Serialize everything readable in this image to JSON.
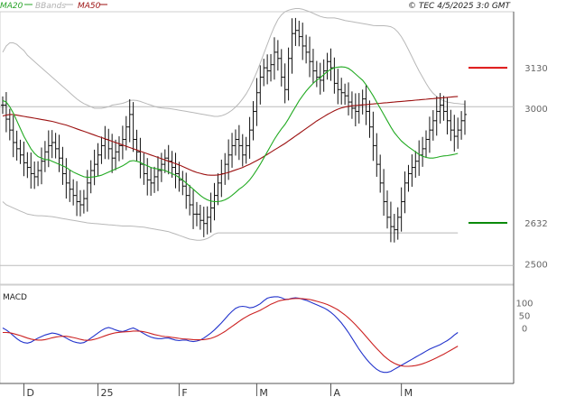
{
  "header": {
    "legend": [
      {
        "label": "MA20",
        "color": "#27a327"
      },
      {
        "label": "BBands",
        "color": "#b0b0b0"
      },
      {
        "label": "MA50",
        "color": "#9c1111"
      }
    ],
    "source_text": "© TEC 4/5/2025 3:0 GMT"
  },
  "chart_data": [
    {
      "type": "ohlc",
      "ylim": [
        2435,
        3310
      ],
      "y_ticks": [
        2500,
        3000
      ],
      "x_tick_labels": [
        "D",
        "25",
        "F",
        "M",
        "A",
        "M"
      ],
      "colors": {
        "bars": "#111111",
        "ma20": "#22aa22",
        "ma50": "#9c1111",
        "bbands": "#b8b8b8"
      },
      "levels": [
        {
          "label": "3130",
          "value": 3130,
          "color": "#dd1111"
        },
        {
          "label": "2632",
          "value": 2632,
          "color": "#0a8a0a"
        }
      ],
      "reference_lines": [
        3005,
        2495
      ],
      "series": [
        {
          "name": "close",
          "values": [
            3010,
            2965,
            2930,
            2890,
            2870,
            2850,
            2825,
            2810,
            2790,
            2780,
            2800,
            2830,
            2860,
            2880,
            2890,
            2870,
            2840,
            2790,
            2760,
            2740,
            2720,
            2700,
            2690,
            2710,
            2760,
            2800,
            2820,
            2850,
            2880,
            2900,
            2870,
            2840,
            2860,
            2880,
            2900,
            2940,
            2980,
            2900,
            2860,
            2820,
            2790,
            2770,
            2760,
            2780,
            2800,
            2820,
            2840,
            2830,
            2810,
            2790,
            2770,
            2750,
            2720,
            2690,
            2660,
            2660,
            2640,
            2630,
            2650,
            2680,
            2720,
            2760,
            2790,
            2820,
            2850,
            2880,
            2900,
            2880,
            2850,
            2880,
            2930,
            2990,
            3050,
            3100,
            3130,
            3120,
            3140,
            3180,
            3160,
            3100,
            3060,
            3160,
            3240,
            3250,
            3230,
            3200,
            3180,
            3150,
            3120,
            3100,
            3090,
            3120,
            3150,
            3130,
            3080,
            3060,
            3050,
            3040,
            3020,
            3000,
            2990,
            3010,
            3030,
            2990,
            2940,
            2880,
            2820,
            2760,
            2700,
            2650,
            2620,
            2610,
            2650,
            2700,
            2760,
            2790,
            2810,
            2830,
            2850,
            2870,
            2900,
            2930,
            2960,
            2990,
            3010,
            2990,
            2960,
            2930,
            2910,
            2930,
            2960,
            2980
          ]
        },
        {
          "name": "MA20",
          "values": [
            3025,
            3020,
            3005,
            2985,
            2960,
            2935,
            2910,
            2890,
            2870,
            2855,
            2845,
            2840,
            2835,
            2835,
            2830,
            2825,
            2820,
            2815,
            2810,
            2802,
            2795,
            2790,
            2785,
            2780,
            2778,
            2779,
            2780,
            2782,
            2785,
            2790,
            2795,
            2800,
            2805,
            2810,
            2815,
            2822,
            2830,
            2832,
            2830,
            2826,
            2820,
            2815,
            2810,
            2807,
            2805,
            2803,
            2800,
            2795,
            2790,
            2785,
            2778,
            2770,
            2760,
            2750,
            2740,
            2730,
            2720,
            2712,
            2706,
            2702,
            2700,
            2700,
            2702,
            2706,
            2712,
            2720,
            2730,
            2740,
            2748,
            2758,
            2770,
            2785,
            2802,
            2820,
            2840,
            2860,
            2880,
            2900,
            2918,
            2934,
            2948,
            2966,
            2986,
            3005,
            3024,
            3040,
            3055,
            3068,
            3080,
            3090,
            3098,
            3108,
            3118,
            3125,
            3130,
            3132,
            3133,
            3132,
            3128,
            3120,
            3110,
            3100,
            3090,
            3075,
            3058,
            3040,
            3020,
            3000,
            2980,
            2960,
            2940,
            2922,
            2908,
            2895,
            2885,
            2876,
            2868,
            2860,
            2852,
            2846,
            2842,
            2840,
            2840,
            2842,
            2845,
            2847,
            2848,
            2850,
            2852,
            2855
          ]
        },
        {
          "name": "MA50",
          "values": [
            2975,
            2978,
            2980,
            2980,
            2978,
            2976,
            2974,
            2972,
            2970,
            2968,
            2966,
            2964,
            2962,
            2960,
            2958,
            2955,
            2952,
            2949,
            2946,
            2942,
            2938,
            2934,
            2930,
            2926,
            2922,
            2918,
            2914,
            2910,
            2906,
            2902,
            2898,
            2894,
            2890,
            2886,
            2882,
            2878,
            2874,
            2870,
            2866,
            2862,
            2858,
            2854,
            2850,
            2846,
            2842,
            2838,
            2834,
            2830,
            2826,
            2822,
            2818,
            2813,
            2808,
            2803,
            2798,
            2794,
            2791,
            2788,
            2786,
            2785,
            2785,
            2786,
            2788,
            2791,
            2794,
            2798,
            2802,
            2806,
            2810,
            2815,
            2820,
            2826,
            2832,
            2838,
            2845,
            2852,
            2859,
            2866,
            2873,
            2880,
            2887,
            2895,
            2903,
            2911,
            2919,
            2927,
            2935,
            2943,
            2951,
            2959,
            2966,
            2973,
            2980,
            2986,
            2992,
            2997,
            3001,
            3004,
            3006,
            3008,
            3009,
            3010,
            3011,
            3012,
            3013,
            3014,
            3015,
            3016,
            3017,
            3018,
            3019,
            3020,
            3021,
            3022,
            3023,
            3024,
            3025,
            3026,
            3027,
            3028,
            3029,
            3030,
            3031,
            3032,
            3033,
            3034,
            3035,
            3036,
            3037,
            3038
          ]
        },
        {
          "name": "BBands upper",
          "values": [
            3180,
            3200,
            3210,
            3210,
            3205,
            3195,
            3185,
            3170,
            3160,
            3150,
            3140,
            3130,
            3120,
            3110,
            3100,
            3090,
            3080,
            3070,
            3060,
            3050,
            3040,
            3030,
            3022,
            3015,
            3010,
            3005,
            3000,
            3000,
            3000,
            3002,
            3005,
            3010,
            3012,
            3014,
            3016,
            3020,
            3025,
            3026,
            3025,
            3022,
            3018,
            3014,
            3010,
            3006,
            3003,
            3001,
            3000,
            2999,
            2998,
            2996,
            2994,
            2992,
            2990,
            2988,
            2986,
            2984,
            2982,
            2980,
            2978,
            2976,
            2974,
            2974,
            2976,
            2980,
            2986,
            2994,
            3004,
            3016,
            3030,
            3046,
            3066,
            3090,
            3116,
            3145,
            3175,
            3205,
            3235,
            3262,
            3285,
            3300,
            3310,
            3315,
            3318,
            3320,
            3320,
            3318,
            3314,
            3310,
            3305,
            3300,
            3295,
            3292,
            3290,
            3290,
            3290,
            3288,
            3285,
            3282,
            3280,
            3278,
            3276,
            3274,
            3272,
            3270,
            3268,
            3266,
            3265,
            3265,
            3265,
            3264,
            3262,
            3256,
            3245,
            3230,
            3210,
            3188,
            3165,
            3142,
            3120,
            3100,
            3080,
            3062,
            3048,
            3038,
            3030,
            3024,
            3020,
            3018,
            3016,
            3015,
            3014,
            3013
          ]
        },
        {
          "name": "BBands lower",
          "values": [
            2700,
            2690,
            2685,
            2680,
            2675,
            2670,
            2665,
            2660,
            2658,
            2656,
            2655,
            2655,
            2654,
            2653,
            2652,
            2650,
            2648,
            2646,
            2644,
            2642,
            2640,
            2638,
            2636,
            2634,
            2632,
            2631,
            2630,
            2629,
            2628,
            2627,
            2626,
            2625,
            2624,
            2623,
            2622,
            2622,
            2622,
            2621,
            2620,
            2619,
            2618,
            2616,
            2614,
            2612,
            2610,
            2608,
            2606,
            2604,
            2600,
            2596,
            2592,
            2588,
            2584,
            2580,
            2578,
            2576,
            2576,
            2578,
            2582,
            2588,
            2596,
            2600,
            2600,
            2600,
            2600,
            2600,
            2600,
            2600,
            2600,
            2600,
            2600,
            2600,
            2600,
            2600,
            2600,
            2600,
            2600,
            2600,
            2600,
            2600,
            2600,
            2600,
            2600,
            2600,
            2600,
            2600,
            2600,
            2600,
            2600,
            2600,
            2600,
            2600,
            2600,
            2600,
            2600,
            2600,
            2600,
            2600,
            2600,
            2600,
            2600,
            2600,
            2600,
            2600,
            2600,
            2600,
            2600,
            2600,
            2600,
            2600,
            2600,
            2600,
            2600,
            2600,
            2600,
            2600,
            2600,
            2600,
            2600,
            2600,
            2600,
            2600,
            2600,
            2600,
            2600,
            2600,
            2600,
            2600,
            2600,
            2600
          ]
        }
      ]
    },
    {
      "type": "line",
      "title": "MACD",
      "ylim": [
        -220,
        170
      ],
      "y_tick_labels": [
        "100",
        "50",
        "0"
      ],
      "y_tick_values": [
        100,
        50,
        0
      ],
      "series": [
        {
          "name": "macd",
          "color": "#2233cc",
          "values": [
            0,
            -8,
            -18,
            -30,
            -42,
            -52,
            -58,
            -60,
            -56,
            -48,
            -40,
            -34,
            -28,
            -24,
            -20,
            -22,
            -26,
            -32,
            -40,
            -48,
            -54,
            -58,
            -60,
            -58,
            -50,
            -40,
            -30,
            -20,
            -10,
            -2,
            2,
            -2,
            -8,
            -12,
            -14,
            -10,
            -4,
            0,
            -6,
            -14,
            -22,
            -30,
            -36,
            -40,
            -42,
            -42,
            -40,
            -40,
            -44,
            -48,
            -50,
            -48,
            -48,
            -52,
            -54,
            -52,
            -48,
            -40,
            -30,
            -20,
            -8,
            6,
            20,
            36,
            52,
            66,
            78,
            84,
            86,
            84,
            80,
            82,
            88,
            96,
            108,
            118,
            122,
            124,
            124,
            120,
            114,
            114,
            118,
            120,
            118,
            114,
            110,
            104,
            98,
            92,
            86,
            80,
            72,
            62,
            50,
            36,
            20,
            2,
            -18,
            -40,
            -62,
            -84,
            -104,
            -122,
            -138,
            -152,
            -164,
            -172,
            -176,
            -176,
            -172,
            -164,
            -156,
            -148,
            -140,
            -132,
            -124,
            -116,
            -108,
            -100,
            -92,
            -84,
            -78,
            -72,
            -66,
            -58,
            -50,
            -40,
            -28,
            -18
          ]
        },
        {
          "name": "signal",
          "color": "#cc2222",
          "values": [
            -18,
            -18,
            -19,
            -22,
            -26,
            -30,
            -35,
            -40,
            -44,
            -47,
            -48,
            -48,
            -46,
            -43,
            -39,
            -36,
            -34,
            -33,
            -33,
            -35,
            -38,
            -41,
            -45,
            -48,
            -49,
            -48,
            -45,
            -41,
            -36,
            -31,
            -26,
            -22,
            -19,
            -17,
            -16,
            -15,
            -14,
            -12,
            -12,
            -13,
            -15,
            -18,
            -22,
            -26,
            -29,
            -32,
            -34,
            -35,
            -37,
            -39,
            -41,
            -43,
            -44,
            -45,
            -46,
            -47,
            -47,
            -46,
            -44,
            -41,
            -36,
            -30,
            -22,
            -14,
            -4,
            6,
            16,
            26,
            36,
            44,
            52,
            58,
            64,
            70,
            78,
            86,
            94,
            100,
            106,
            110,
            112,
            114,
            116,
            117,
            117,
            116,
            115,
            113,
            110,
            106,
            102,
            98,
            93,
            87,
            80,
            72,
            62,
            52,
            40,
            27,
            13,
            -2,
            -18,
            -34,
            -50,
            -66,
            -81,
            -96,
            -110,
            -122,
            -132,
            -140,
            -146,
            -150,
            -152,
            -152,
            -151,
            -149,
            -146,
            -142,
            -137,
            -131,
            -125,
            -118,
            -111,
            -104,
            -96,
            -88,
            -80,
            -72
          ]
        }
      ]
    }
  ]
}
